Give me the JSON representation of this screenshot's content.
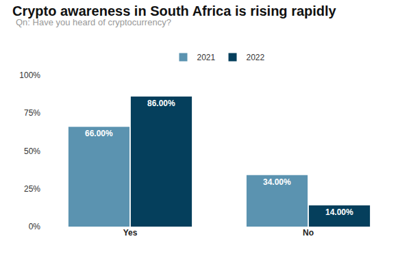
{
  "chart_data": {
    "type": "bar",
    "title": "Crypto awareness in South Africa is rising rapidly",
    "subtitle": "Qn: Have you heard of cryptocurrency?",
    "categories": [
      "Yes",
      "No"
    ],
    "series": [
      {
        "name": "2021",
        "color": "#5b93b0",
        "values": [
          66,
          34
        ],
        "value_labels": [
          "66.00%",
          "34.00%"
        ]
      },
      {
        "name": "2022",
        "color": "#053f5c",
        "values": [
          86,
          14
        ],
        "value_labels": [
          "86.00%",
          "14.00%"
        ]
      }
    ],
    "ylim": [
      0,
      100
    ],
    "yticks": [
      {
        "value": 0,
        "label": "0%"
      },
      {
        "value": 25,
        "label": "25%"
      },
      {
        "value": 50,
        "label": "50%"
      },
      {
        "value": 75,
        "label": "75%"
      },
      {
        "value": 100,
        "label": "100%"
      }
    ],
    "grid": false,
    "legend": "top",
    "data_labels": true
  }
}
